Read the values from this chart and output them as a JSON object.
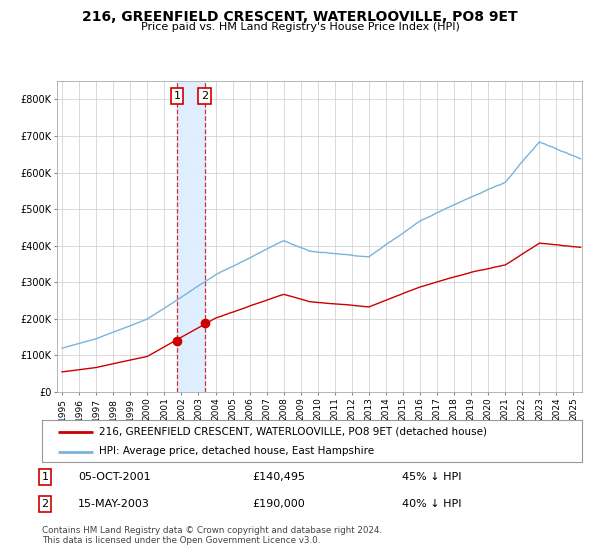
{
  "title": "216, GREENFIELD CRESCENT, WATERLOOVILLE, PO8 9ET",
  "subtitle": "Price paid vs. HM Land Registry's House Price Index (HPI)",
  "hpi_label": "HPI: Average price, detached house, East Hampshire",
  "property_label": "216, GREENFIELD CRESCENT, WATERLOOVILLE, PO8 9ET (detached house)",
  "hpi_color": "#7ab4d8",
  "property_color": "#cc0000",
  "sale1_date": "05-OCT-2001",
  "sale1_price": 140495,
  "sale1_pricefmt": "£140,495",
  "sale1_hpi": "45% ↓ HPI",
  "sale2_date": "15-MAY-2003",
  "sale2_price": 190000,
  "sale2_pricefmt": "£190,000",
  "sale2_hpi": "40% ↓ HPI",
  "ylim_max": 850000,
  "xlim_start": 1994.7,
  "xlim_end": 2025.5,
  "background_color": "#ffffff",
  "grid_color": "#cccccc",
  "footnote_line1": "Contains HM Land Registry data © Crown copyright and database right 2024.",
  "footnote_line2": "This data is licensed under the Open Government Licence v3.0.",
  "sale1_x": 2001.75,
  "sale2_x": 2003.37
}
